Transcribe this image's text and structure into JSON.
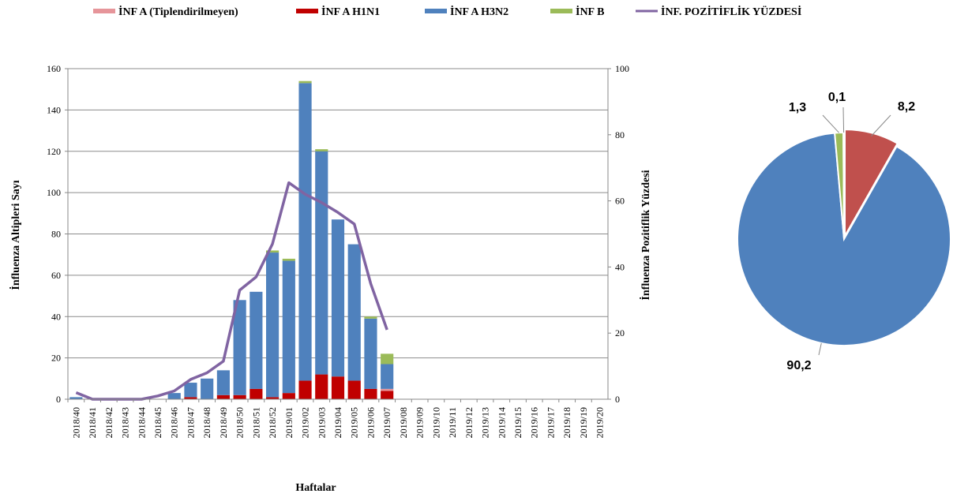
{
  "legend": [
    {
      "label": "İNF A (Tiplendirilmeyen)",
      "color": "#e6959a",
      "kind": "rect"
    },
    {
      "label": "İNF A H1N1",
      "color": "#c00000",
      "kind": "rect"
    },
    {
      "label": "İNF A H3N2",
      "color": "#4f81bd",
      "kind": "rect"
    },
    {
      "label": "İNF B",
      "color": "#9bbb59",
      "kind": "rect"
    },
    {
      "label": "İNF. POZİTİFLİK YÜZDESİ",
      "color": "#8064a2",
      "kind": "line"
    }
  ],
  "chart_data": [
    {
      "type": "bar",
      "stacked": true,
      "xlabel": "Haftalar",
      "ylabel": "İnfluenza Altipleri Sayı",
      "y2label": "İnfluenza Pozitiflik Yüzdesi",
      "ylim": [
        0,
        160
      ],
      "yticks": [
        0,
        20,
        40,
        60,
        80,
        100,
        120,
        140,
        160
      ],
      "y2lim": [
        0,
        100
      ],
      "y2ticks": [
        0,
        20,
        40,
        60,
        80,
        100
      ],
      "grid": true,
      "legend": "top",
      "categories": [
        "2018/40",
        "2018/41",
        "2018/42",
        "2018/43",
        "2018/44",
        "2018/45",
        "2018/46",
        "2018/47",
        "2018/48",
        "2018/49",
        "2018/50",
        "2018/51",
        "2018/52",
        "2019/01",
        "2019/02",
        "2019/03",
        "2019/04",
        "2019/05",
        "2019/06",
        "2019/07",
        "2019/08",
        "2019/09",
        "2019/10",
        "2019/11",
        "2019/12",
        "2019/13",
        "2019/14",
        "2019/15",
        "2019/16",
        "2019/17",
        "2019/18",
        "2019/19",
        "2019/20"
      ],
      "series": [
        {
          "name": "İNF A (Tiplendirilmeyen)",
          "color": "#e6959a",
          "values": [
            0,
            0,
            0,
            0,
            0,
            0,
            0,
            0,
            0,
            0,
            0,
            0,
            0,
            0,
            0,
            0,
            0,
            0,
            0,
            1,
            null,
            null,
            null,
            null,
            null,
            null,
            null,
            null,
            null,
            null,
            null,
            null,
            null
          ]
        },
        {
          "name": "İNF A H1N1",
          "color": "#c00000",
          "values": [
            0,
            0,
            0,
            0,
            0,
            0,
            0,
            1,
            0,
            2,
            2,
            5,
            1,
            3,
            9,
            12,
            11,
            9,
            5,
            4,
            null,
            null,
            null,
            null,
            null,
            null,
            null,
            null,
            null,
            null,
            null,
            null,
            null
          ]
        },
        {
          "name": "İNF A H3N2",
          "color": "#4f81bd",
          "values": [
            1,
            0,
            0,
            0,
            0,
            0,
            3,
            7,
            10,
            12,
            46,
            47,
            70,
            64,
            144,
            108,
            76,
            66,
            34,
            12,
            null,
            null,
            null,
            null,
            null,
            null,
            null,
            null,
            null,
            null,
            null,
            null,
            null
          ]
        },
        {
          "name": "İNF B",
          "color": "#9bbb59",
          "values": [
            0,
            0,
            0,
            0,
            0,
            0,
            0,
            0,
            0,
            0,
            0,
            0,
            1,
            1,
            1,
            1,
            0,
            0,
            1,
            5,
            null,
            null,
            null,
            null,
            null,
            null,
            null,
            null,
            null,
            null,
            null,
            null,
            null
          ]
        },
        {
          "name": "İNF. POZİTİFLİK YÜZDESİ",
          "color": "#8064a2",
          "axis": "y2",
          "type": "line",
          "values": [
            2,
            0,
            0,
            0,
            0,
            1,
            2.5,
            6,
            8,
            11.5,
            33,
            37,
            47,
            65.5,
            62,
            59.5,
            56.5,
            53,
            35,
            21,
            null,
            null,
            null,
            null,
            null,
            null,
            null,
            null,
            null,
            null,
            null,
            null,
            null
          ]
        }
      ]
    },
    {
      "type": "pie",
      "labels": [
        "8,2",
        "90,2",
        "1,3",
        "0,1"
      ],
      "values": [
        8.2,
        90.2,
        1.3,
        0.1
      ],
      "colors": [
        "#c0504d",
        "#4f81bd",
        "#9bbb59",
        "#e6959a"
      ]
    }
  ]
}
